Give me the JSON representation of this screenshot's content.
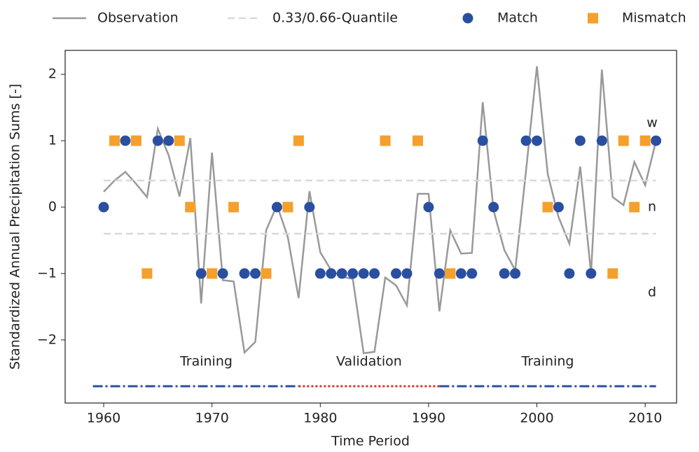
{
  "chart_data": {
    "type": "line",
    "xlabel": "Time Period",
    "ylabel": "Standardized Annual Precipitation Sums [-]",
    "xlim": [
      1956.44,
      2012.9
    ],
    "ylim": [
      -2.95,
      2.36
    ],
    "xticks": [
      1960,
      1970,
      1980,
      1990,
      2000,
      2010
    ],
    "yticks": [
      {
        "value": -2,
        "label": "−2"
      },
      {
        "value": -1,
        "label": "−1"
      },
      0,
      1,
      2
    ],
    "legend": "top",
    "series": [
      {
        "name": "Observation",
        "type": "line",
        "color": "#999999",
        "x": [
          1960,
          1961,
          1962,
          1963,
          1964,
          1965,
          1966,
          1967,
          1968,
          1969,
          1970,
          1971,
          1972,
          1973,
          1974,
          1975,
          1976,
          1977,
          1978,
          1979,
          1980,
          1981,
          1982,
          1983,
          1984,
          1985,
          1986,
          1987,
          1988,
          1989,
          1990,
          1991,
          1992,
          1993,
          1994,
          1995,
          1996,
          1997,
          1998,
          1999,
          2000,
          2001,
          2002,
          2003,
          2004,
          2005,
          2006,
          2007,
          2008,
          2009,
          2010,
          2011
        ],
        "values": [
          0.23,
          0.4,
          0.53,
          0.35,
          0.15,
          1.18,
          0.78,
          0.16,
          1.04,
          -1.45,
          0.82,
          -1.1,
          -1.12,
          -2.19,
          -2.03,
          -0.35,
          0.03,
          -0.45,
          -1.37,
          0.24,
          -0.68,
          -0.95,
          -1.05,
          -1.08,
          -2.2,
          -2.18,
          -1.06,
          -1.18,
          -1.48,
          0.2,
          0.2,
          -1.57,
          -0.35,
          -0.7,
          -0.69,
          1.58,
          -0.05,
          -0.65,
          -0.95,
          0.55,
          2.12,
          0.5,
          -0.15,
          -0.55,
          0.61,
          -1.0,
          2.07,
          0.15,
          0.03,
          0.68,
          0.33,
          1.0
        ]
      },
      {
        "name": "0.33/0.66-Quantile",
        "type": "hline",
        "color": "#d9d9d9",
        "x": [
          1960,
          2011
        ],
        "values": [
          0.4,
          -0.4
        ]
      },
      {
        "name": "Match",
        "type": "scatter",
        "marker": "circle",
        "color": "#2a4fa0",
        "x": [
          1960,
          1962,
          1965,
          1966,
          1969,
          1971,
          1973,
          1974,
          1976,
          1979,
          1980,
          1981,
          1982,
          1983,
          1984,
          1985,
          1987,
          1988,
          1990,
          1991,
          1993,
          1994,
          1995,
          1996,
          1997,
          1998,
          1999,
          2000,
          2002,
          2003,
          2004,
          2005,
          2006,
          2011
        ],
        "values": [
          0,
          1,
          1,
          1,
          -1,
          -1,
          -1,
          -1,
          0,
          0,
          -1,
          -1,
          -1,
          -1,
          -1,
          -1,
          -1,
          -1,
          0,
          -1,
          -1,
          -1,
          1,
          0,
          -1,
          -1,
          1,
          1,
          0,
          -1,
          1,
          -1,
          1,
          1
        ]
      },
      {
        "name": "Mismatch",
        "type": "scatter",
        "marker": "square",
        "color": "#f5a02c",
        "x": [
          1961,
          1963,
          1964,
          1967,
          1968,
          1970,
          1972,
          1975,
          1977,
          1978,
          1986,
          1989,
          1992,
          2001,
          2007,
          2008,
          2009,
          2010
        ],
        "values": [
          1,
          1,
          -1,
          1,
          0,
          -1,
          0,
          -1,
          0,
          1,
          1,
          1,
          -1,
          0,
          -1,
          1,
          0,
          1
        ]
      }
    ],
    "classes": [
      {
        "label": "w",
        "value": 1
      },
      {
        "label": "n",
        "value": 0
      },
      {
        "label": "d",
        "value": -1
      }
    ],
    "periods": [
      {
        "label": "Training",
        "x": [
          1959,
          1978
        ],
        "color": "#2a4fa0",
        "style": "dashdot"
      },
      {
        "label": "Validation",
        "x": [
          1978,
          1991
        ],
        "color": "#e0302a",
        "style": "dotted"
      },
      {
        "label": "Training",
        "x": [
          1991,
          2011
        ],
        "color": "#2a4fa0",
        "style": "dashdot"
      }
    ]
  }
}
